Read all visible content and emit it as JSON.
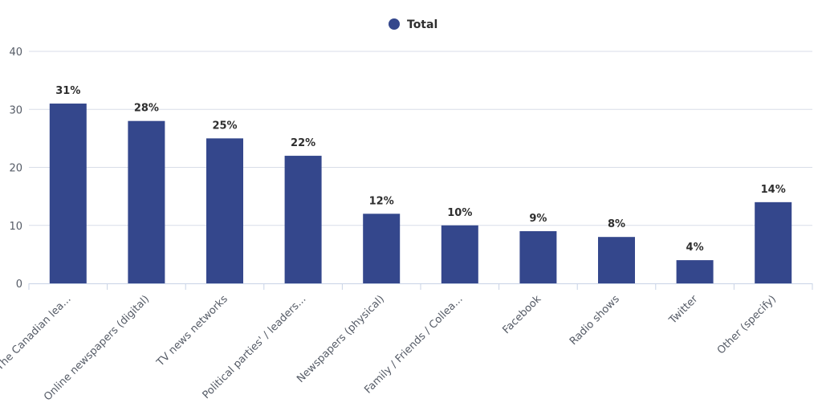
{
  "legend": {
    "label": "Total",
    "color": "#34478c"
  },
  "colors": {
    "bar": "#34478c",
    "grid": "#d8dee8",
    "axis": "#c8d3e6"
  },
  "chart_data": {
    "type": "bar",
    "categories": [
      "The Canadian lea...",
      "Online newspapers (digital)",
      "TV news networks",
      "Political parties' / leaders...",
      "Newspapers (physical)",
      "Family / Friends / Collea...",
      "Facebook",
      "Radio shows",
      "Twitter",
      "Other (specify)"
    ],
    "series": [
      {
        "name": "Total",
        "values": [
          31,
          28,
          25,
          22,
          12,
          10,
          9,
          8,
          4,
          14
        ],
        "labels": [
          "31%",
          "28%",
          "25%",
          "22%",
          "12%",
          "10%",
          "9%",
          "8%",
          "4%",
          "14%"
        ]
      }
    ],
    "yticks": [
      "0",
      "10",
      "20",
      "30",
      "40"
    ],
    "ylim": [
      0,
      40
    ],
    "grid": true,
    "legend_position": "top-center",
    "xlabel": "",
    "ylabel": ""
  }
}
